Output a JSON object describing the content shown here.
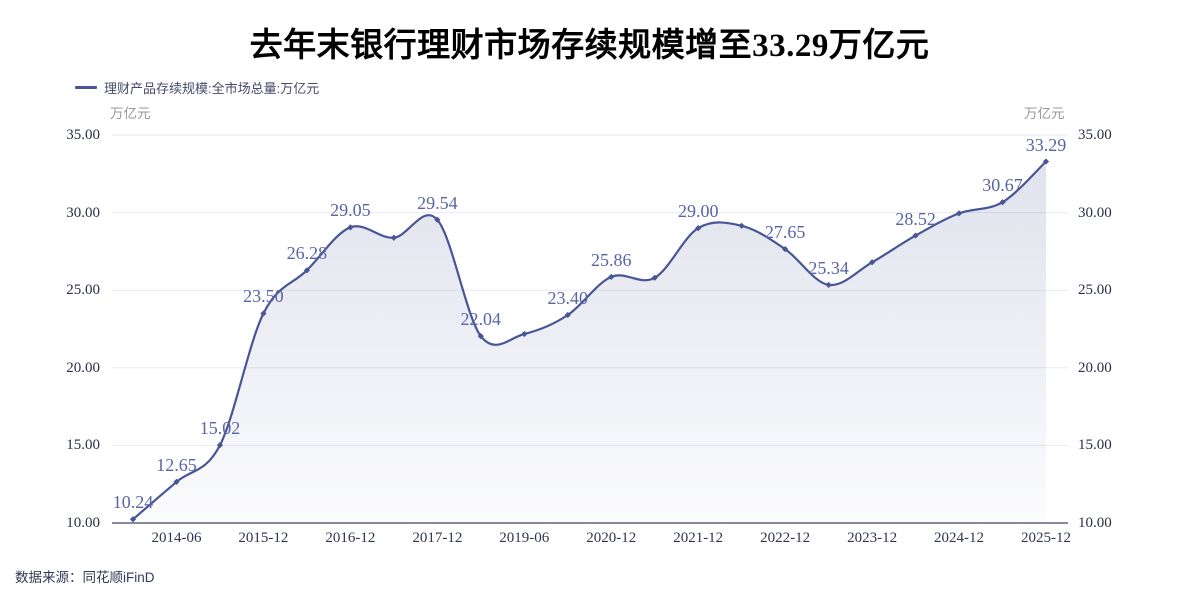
{
  "header": {
    "title_prefix": "去年末银行理财市场存续规模增至",
    "title_number": "33.29",
    "title_suffix": "万亿元"
  },
  "legend": {
    "label": "理财产品存续规模:全市场总量:万亿元"
  },
  "axis_units": {
    "left": "万亿元",
    "right": "万亿元"
  },
  "source": {
    "text": "数据来源：同花顺iFinD"
  },
  "colors": {
    "line": "#485596",
    "marker": "#485596",
    "data_label": "#5A64A5",
    "area_top": "rgba(72,85,150,0.18)",
    "area_bottom": "rgba(72,85,150,0.02)",
    "grid": "#E8EAF3",
    "axis_line": "#3E4468",
    "x_tick_label": "#2F3552",
    "y_tick_label": "#2A2F45",
    "unit_label": "#999999",
    "legend_text": "#454A6B",
    "title": "#000000"
  },
  "chart_data": {
    "type": "area",
    "title": "去年末银行理财市场存续规模增至33.29万亿元",
    "series_name": "理财产品存续规模:全市场总量:万亿元",
    "ylabel_left": "万亿元",
    "ylabel_right": "万亿元",
    "legend_position": "top-left",
    "grid": true,
    "ylim": [
      10,
      35
    ],
    "x": [
      "2013-12",
      "2014-06",
      "2014-12",
      "2015-12",
      "2016-06",
      "2016-12",
      "2017-06",
      "2017-12",
      "2018-12",
      "2019-06",
      "2019-12",
      "2020-12",
      "2021-06",
      "2021-12",
      "2022-06",
      "2022-12",
      "2023-06",
      "2023-12",
      "2024-06",
      "2024-12",
      "2025-06",
      "2025-12"
    ],
    "values": [
      10.24,
      12.65,
      15.02,
      23.5,
      26.28,
      29.05,
      28.38,
      29.54,
      22.04,
      22.18,
      23.4,
      25.86,
      25.8,
      29.0,
      29.15,
      27.65,
      25.34,
      26.8,
      28.52,
      29.95,
      30.67,
      33.29
    ],
    "point_labels": [
      "10.24",
      "12.65",
      "15.02",
      "23.50",
      "26.28",
      "29.05",
      null,
      "29.54",
      "22.04",
      null,
      "23.40",
      "25.86",
      null,
      "29.00",
      null,
      "27.65",
      "25.34",
      null,
      "28.52",
      null,
      "30.67",
      "33.29"
    ],
    "x_tick_indices": [
      1,
      3,
      5,
      7,
      9,
      11,
      13,
      15,
      17,
      19,
      21
    ],
    "x_tick_labels": [
      "2014-06",
      "2015-12",
      "2016-12",
      "2017-12",
      "2019-06",
      "2020-12",
      "2021-12",
      "2022-12",
      "2023-12",
      "2024-12",
      "2025-12"
    ],
    "y_ticks": [
      "35.00",
      "30.00",
      "25.00",
      "20.00",
      "15.00",
      "10.00"
    ],
    "y_tick_values": [
      35,
      30,
      25,
      20,
      15,
      10
    ],
    "source": "数据来源：同花顺iFinD"
  }
}
